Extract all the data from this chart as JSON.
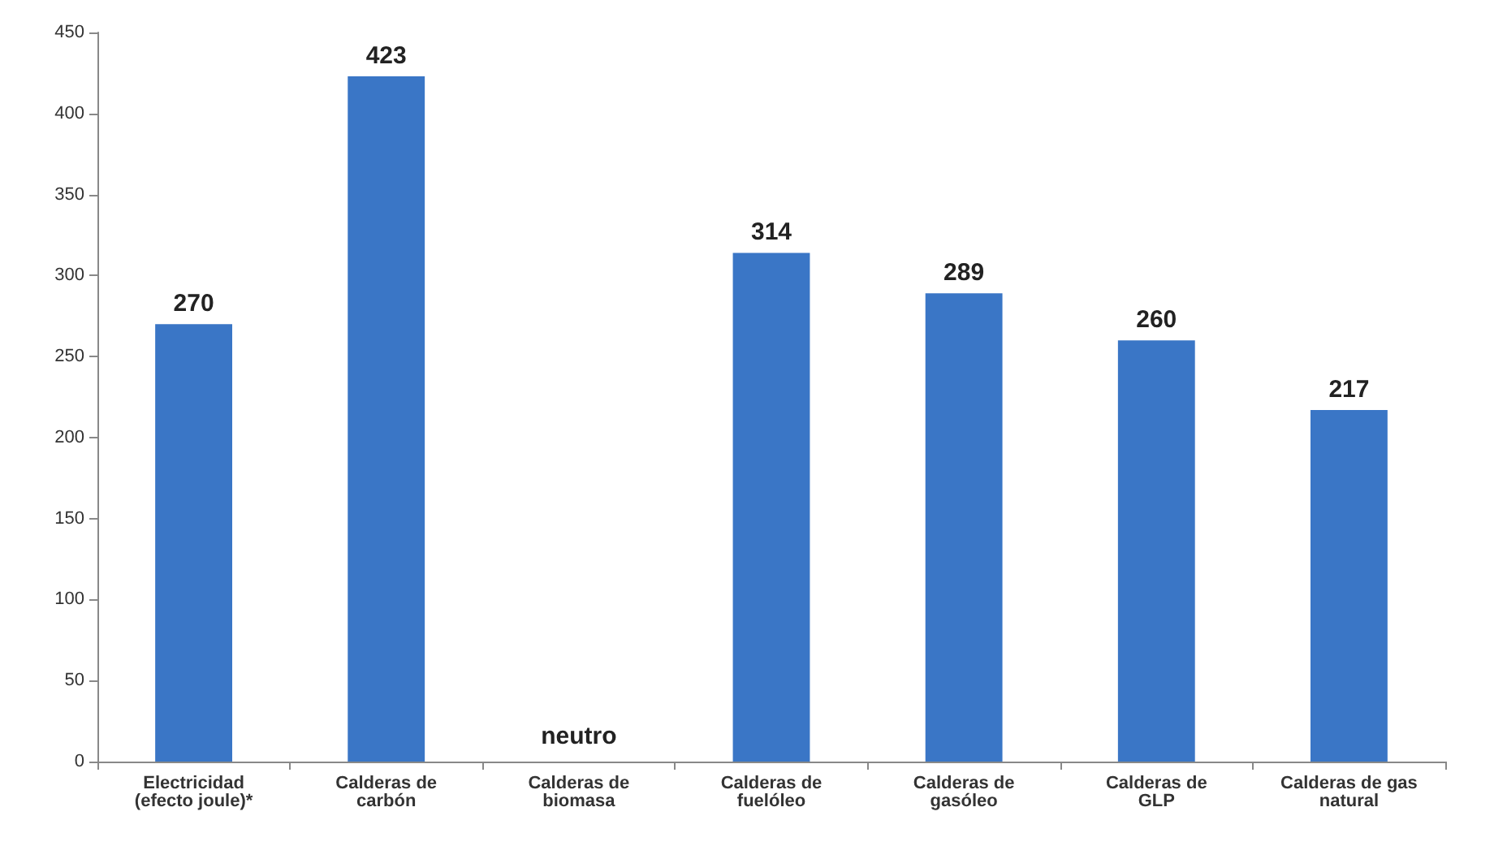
{
  "chart_data": {
    "type": "bar",
    "categories": [
      "Electricidad\n(efecto joule)*",
      "Calderas de\ncarbón",
      "Calderas de\nbiomasa",
      "Calderas de\nfuelóleo",
      "Calderas de\ngasóleo",
      "Calderas de\nGLP",
      "Calderas de gas\nnatural"
    ],
    "values": [
      270,
      423,
      null,
      314,
      289,
      260,
      217
    ],
    "value_labels": [
      "270",
      "423",
      "neutro",
      "314",
      "289",
      "260",
      "217"
    ],
    "color": "#3a76c6",
    "ylim": [
      0,
      450
    ],
    "yticks": [
      0,
      50,
      100,
      150,
      200,
      250,
      300,
      350,
      400,
      450
    ],
    "grid": false
  }
}
